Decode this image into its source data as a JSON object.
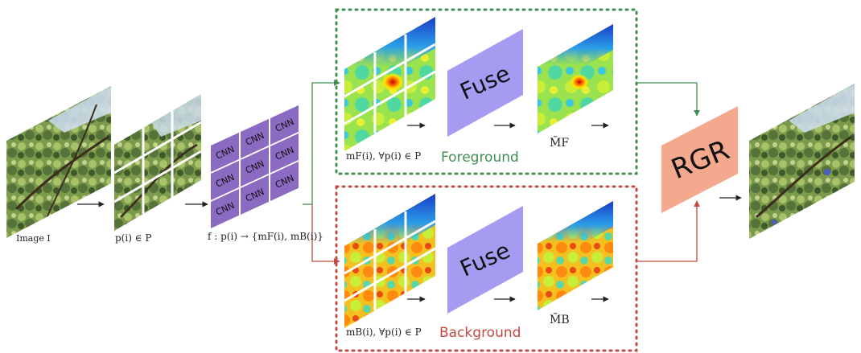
{
  "inputs": {
    "image_label": "Image I",
    "patches_label": "p(i) ∈ P"
  },
  "cnn": {
    "block_label": "CNN",
    "mapping_label": "f : p(i) → {mF(i), mB(i)}"
  },
  "foreground": {
    "title": "Foreground",
    "maps_label": "mF(i), ∀p(i) ∈ P",
    "fuse_label": "Fuse",
    "fused_label": "M̃F",
    "color": "#3f8f52"
  },
  "background": {
    "title": "Background",
    "maps_label": "mB(i), ∀p(i) ∈ P",
    "fuse_label": "Fuse",
    "fused_label": "M̃B",
    "color": "#c24a45"
  },
  "rgr": {
    "label": "RGR",
    "color": "#f4a98e"
  },
  "colors": {
    "cnn_block": "#8b6bc2",
    "fuse_block": "#a59bf0",
    "arrow": "#222222"
  }
}
